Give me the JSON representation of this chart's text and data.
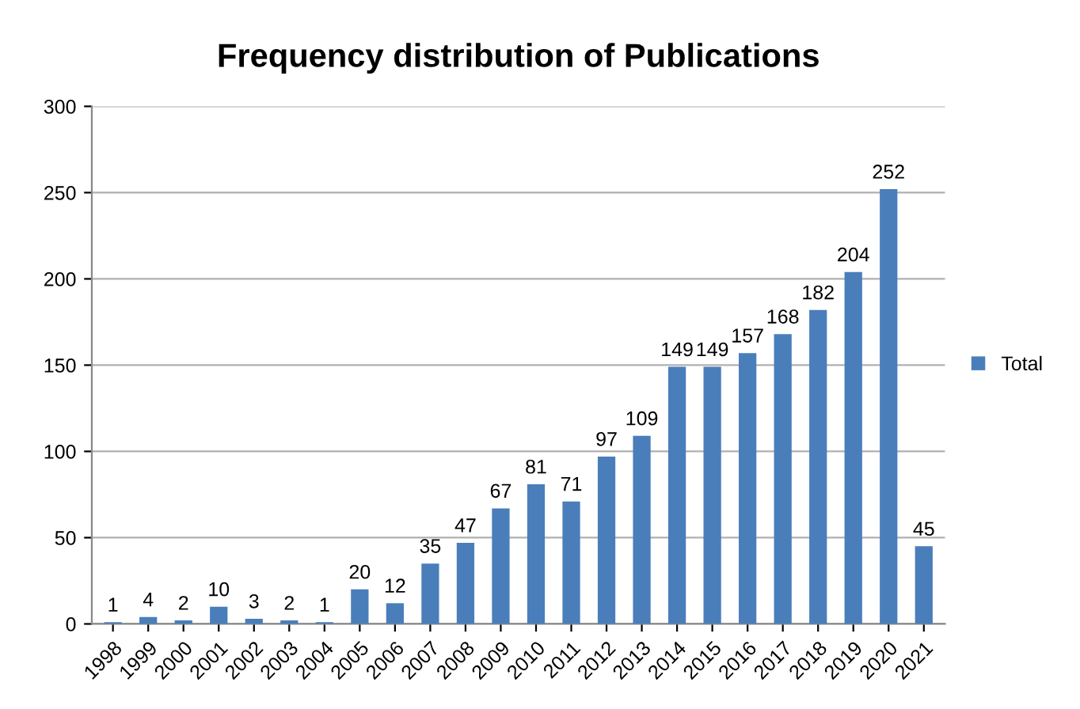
{
  "chart_data": {
    "type": "bar",
    "title": "Frequency distribution of Publications",
    "categories": [
      "1998",
      "1999",
      "2000",
      "2001",
      "2002",
      "2003",
      "2004",
      "2005",
      "2006",
      "2007",
      "2008",
      "2009",
      "2010",
      "2011",
      "2012",
      "2013",
      "2014",
      "2015",
      "2016",
      "2017",
      "2018",
      "2019",
      "2020",
      "2021"
    ],
    "series": [
      {
        "name": "Total",
        "color": "#4a7ebb",
        "values": [
          1,
          4,
          2,
          10,
          3,
          2,
          1,
          20,
          12,
          35,
          47,
          67,
          81,
          71,
          97,
          109,
          149,
          149,
          157,
          168,
          182,
          204,
          252,
          45
        ]
      }
    ],
    "ylim": [
      0,
      300
    ],
    "yticks": [
      0,
      50,
      100,
      150,
      200,
      250,
      300
    ],
    "grid": "y",
    "legend": "right",
    "data_labels": true
  }
}
